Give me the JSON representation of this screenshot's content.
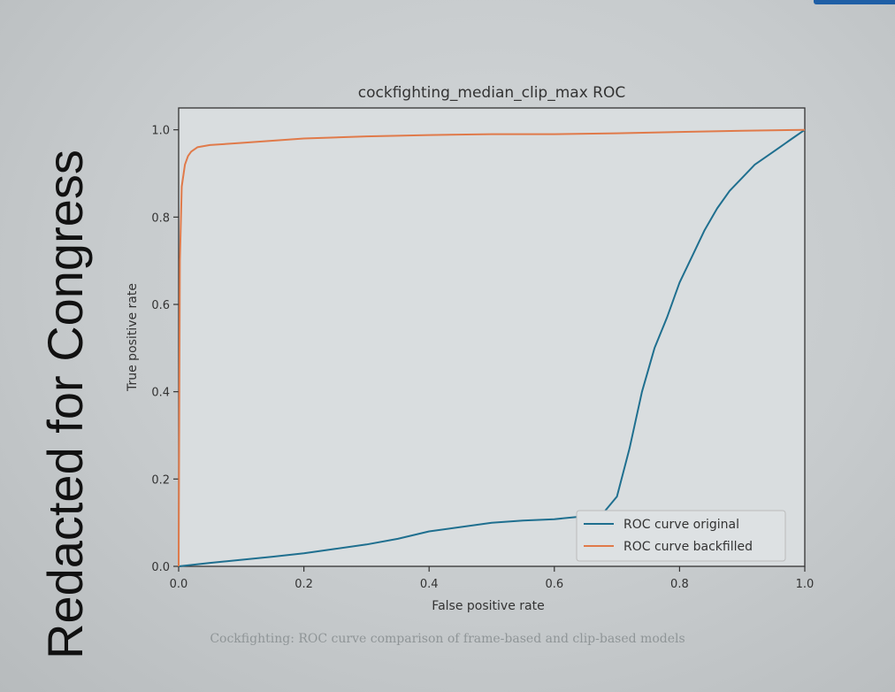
{
  "redaction_text": "Redacted for Congress",
  "caption": "Cockfighting: ROC curve comparison of frame-based and clip-based models",
  "colors": {
    "original": "#1f6f8f",
    "backfilled": "#e07a4a",
    "axis": "#333333"
  },
  "chart_data": {
    "type": "line",
    "title": "cockfighting_median_clip_max ROC",
    "xlabel": "False positive rate",
    "ylabel": "True positive rate",
    "xlim": [
      0.0,
      1.0
    ],
    "ylim": [
      0.0,
      1.05
    ],
    "xticks": [
      0.0,
      0.2,
      0.4,
      0.6,
      0.8,
      1.0
    ],
    "yticks": [
      0.0,
      0.2,
      0.4,
      0.6,
      0.8,
      1.0
    ],
    "grid": false,
    "legend_position": "lower-right",
    "series": [
      {
        "name": "ROC curve original",
        "x": [
          0.0,
          0.05,
          0.1,
          0.15,
          0.2,
          0.25,
          0.3,
          0.35,
          0.4,
          0.45,
          0.5,
          0.55,
          0.6,
          0.65,
          0.68,
          0.7,
          0.72,
          0.74,
          0.76,
          0.78,
          0.8,
          0.82,
          0.84,
          0.86,
          0.88,
          0.9,
          0.92,
          0.94,
          0.96,
          0.98,
          1.0
        ],
        "y": [
          0.0,
          0.008,
          0.015,
          0.022,
          0.03,
          0.04,
          0.05,
          0.063,
          0.08,
          0.09,
          0.1,
          0.105,
          0.108,
          0.115,
          0.125,
          0.16,
          0.27,
          0.4,
          0.5,
          0.57,
          0.65,
          0.71,
          0.77,
          0.82,
          0.86,
          0.89,
          0.92,
          0.94,
          0.96,
          0.98,
          1.0
        ]
      },
      {
        "name": "ROC curve backfilled",
        "x": [
          0.0,
          0.002,
          0.005,
          0.01,
          0.015,
          0.02,
          0.03,
          0.05,
          0.1,
          0.15,
          0.2,
          0.3,
          0.4,
          0.5,
          0.6,
          0.7,
          0.8,
          0.9,
          1.0
        ],
        "y": [
          0.0,
          0.7,
          0.87,
          0.92,
          0.94,
          0.95,
          0.96,
          0.965,
          0.97,
          0.975,
          0.98,
          0.985,
          0.988,
          0.99,
          0.99,
          0.992,
          0.995,
          0.998,
          1.0
        ]
      }
    ]
  }
}
